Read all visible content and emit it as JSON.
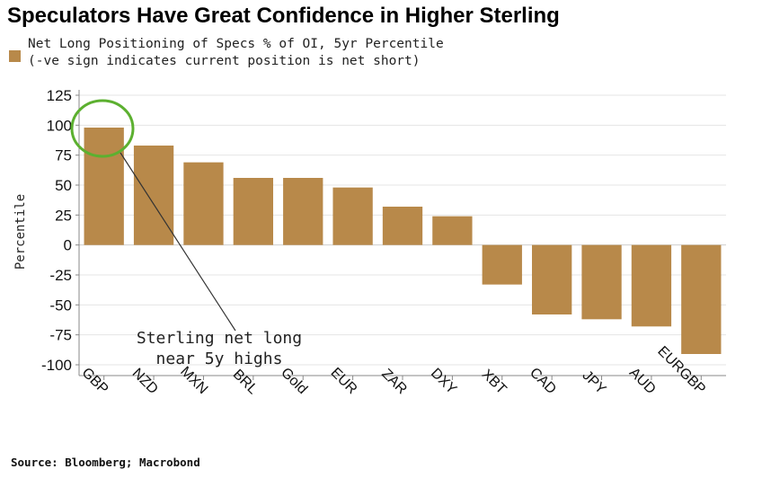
{
  "chart_data": {
    "type": "bar",
    "title": "Speculators Have Great Confidence in Higher Sterling",
    "legend": {
      "label_line1": "Net Long Positioning of Specs % of OI, 5yr Percentile",
      "label_line2": "(-ve sign indicates current position is net short)",
      "swatch_color": "#b8894a"
    },
    "ylabel": "Percentile",
    "ylim": [
      -105,
      130
    ],
    "yticks": [
      125,
      100,
      75,
      50,
      25,
      0,
      -25,
      -50,
      -75,
      -100
    ],
    "grid": true,
    "bar_color": "#b8894a",
    "categories": [
      "GBP",
      "NZD",
      "MXN",
      "BRL",
      "Gold",
      "EUR",
      "ZAR",
      "DXY",
      "XBT",
      "CAD",
      "JPY",
      "AUD",
      "EURGBP"
    ],
    "values": [
      98,
      83,
      69,
      56,
      56,
      48,
      32,
      24,
      -33,
      -58,
      -62,
      -68,
      -91
    ],
    "annotation": {
      "line1": "Sterling net long",
      "line2": "near 5y highs",
      "circle_color": "#5cb030"
    },
    "source": "Source: Bloomberg; Macrobond"
  }
}
